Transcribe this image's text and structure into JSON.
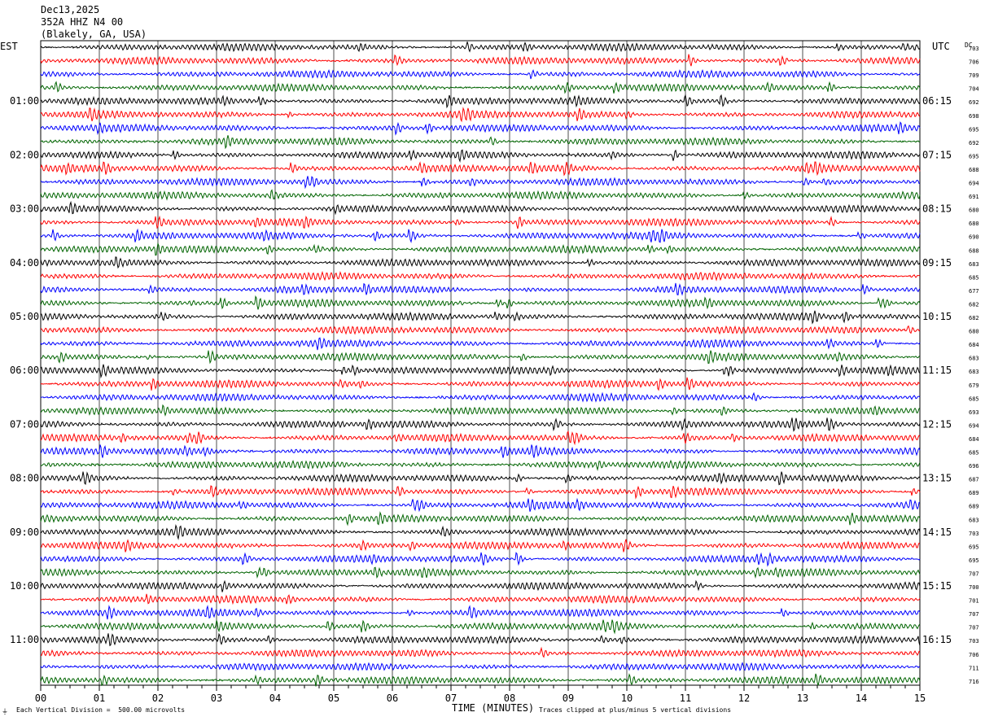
{
  "header": {
    "date": "Dec13,2025",
    "station": "352A HHZ N4 00",
    "location": "(Blakely, GA, USA)"
  },
  "left_tz": "EST",
  "right_tz": "UTC",
  "dc_label": "DC",
  "footer": {
    "scale_note": "Each Vertical Division =  500.00 microvolts",
    "clip_note": "Traces clipped at plus/minus 5 vertical divisions",
    "corner_mark": "⏚"
  },
  "chart_data": {
    "type": "line",
    "title": "",
    "xlabel": "TIME (MINUTES)",
    "ylabel": "",
    "xlim": [
      0,
      15
    ],
    "x_ticks": [
      "00",
      "01",
      "02",
      "03",
      "04",
      "05",
      "06",
      "07",
      "08",
      "09",
      "10",
      "11",
      "12",
      "13",
      "14",
      "15"
    ],
    "grid": true,
    "trace_colors": [
      "#000000",
      "#ff0000",
      "#0000ff",
      "#006400"
    ],
    "left_time_labels": [
      "01:00",
      "02:00",
      "03:00",
      "04:00",
      "05:00",
      "06:00",
      "07:00",
      "08:00",
      "09:00",
      "10:00",
      "11:00"
    ],
    "right_time_labels": [
      "06:15",
      "07:15",
      "08:15",
      "09:15",
      "10:15",
      "11:15",
      "12:15",
      "13:15",
      "14:15",
      "15:15",
      "16:15"
    ],
    "dc_offsets": [
      "703",
      "706",
      "709",
      "704",
      "692",
      "698",
      "695",
      "692",
      "695",
      "688",
      "694",
      "691",
      "680",
      "680",
      "690",
      "688",
      "683",
      "685",
      "677",
      "682",
      "682",
      "680",
      "684",
      "683",
      "683",
      "679",
      "685",
      "693",
      "694",
      "684",
      "685",
      "696",
      "687",
      "689",
      "689",
      "683",
      "703",
      "695",
      "695",
      "707",
      "700",
      "701",
      "707",
      "707",
      "703",
      "706",
      "711",
      "716"
    ]
  }
}
